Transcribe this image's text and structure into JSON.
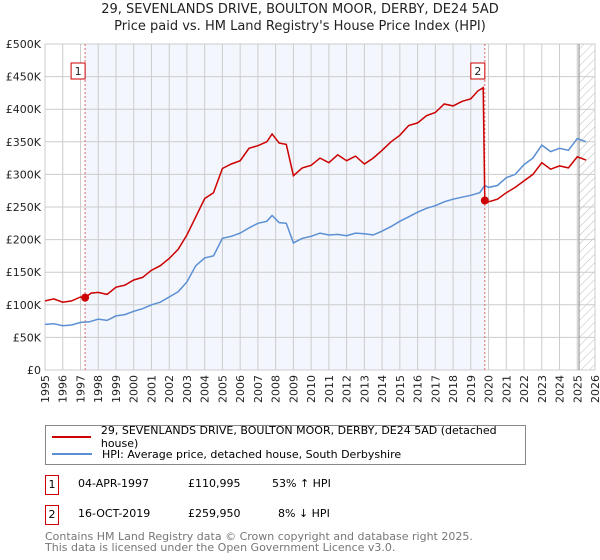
{
  "title_line1": "29, SEVENLANDS DRIVE, BOULTON MOOR, DERBY, DE24 5AD",
  "title_line2": "Price paid vs. HM Land Registry's House Price Index (HPI)",
  "chart_data": {
    "type": "line",
    "xlim": [
      1995,
      2026
    ],
    "ylim": [
      0,
      500000
    ],
    "yticks": [
      {
        "v": 0,
        "label": "£0"
      },
      {
        "v": 50000,
        "label": "£50K"
      },
      {
        "v": 100000,
        "label": "£100K"
      },
      {
        "v": 150000,
        "label": "£150K"
      },
      {
        "v": 200000,
        "label": "£200K"
      },
      {
        "v": 250000,
        "label": "£250K"
      },
      {
        "v": 300000,
        "label": "£300K"
      },
      {
        "v": 350000,
        "label": "£350K"
      },
      {
        "v": 400000,
        "label": "£400K"
      },
      {
        "v": 450000,
        "label": "£450K"
      },
      {
        "v": 500000,
        "label": "£500K"
      }
    ],
    "xticks": [
      1995,
      1996,
      1997,
      1998,
      1999,
      2000,
      2001,
      2002,
      2003,
      2004,
      2005,
      2006,
      2007,
      2008,
      2009,
      2010,
      2011,
      2012,
      2013,
      2014,
      2015,
      2016,
      2017,
      2018,
      2019,
      2020,
      2021,
      2022,
      2023,
      2024,
      2025,
      2026
    ],
    "grid": true,
    "shaded_range": [
      1997.26,
      2019.79
    ],
    "hatched_from": 2025.1,
    "series": [
      {
        "name": "29, SEVENLANDS DRIVE, BOULTON MOOR, DERBY, DE24 5AD (detached house)",
        "color": "#cc0000",
        "x": [
          1995,
          1995.5,
          1996,
          1996.5,
          1997,
          1997.26,
          1997.6,
          1998,
          1998.5,
          1999,
          1999.5,
          2000,
          2000.5,
          2001,
          2001.5,
          2002,
          2002.5,
          2003,
          2003.5,
          2004,
          2004.5,
          2005,
          2005.5,
          2006,
          2006.5,
          2007,
          2007.5,
          2007.8,
          2008.2,
          2008.6,
          2009,
          2009.5,
          2010,
          2010.5,
          2011,
          2011.5,
          2012,
          2012.5,
          2013,
          2013.5,
          2014,
          2014.5,
          2015,
          2015.5,
          2016,
          2016.5,
          2017,
          2017.5,
          2018,
          2018.5,
          2019,
          2019.4,
          2019.7,
          2019.79,
          2020,
          2020.5,
          2021,
          2021.5,
          2022,
          2022.5,
          2023,
          2023.5,
          2024,
          2024.5,
          2025,
          2025.5
        ],
        "y": [
          106000,
          109000,
          104000,
          106000,
          112000,
          110995,
          118000,
          119000,
          116000,
          127000,
          130000,
          138000,
          142000,
          153000,
          160000,
          171000,
          185000,
          207000,
          235000,
          263000,
          272000,
          309000,
          316000,
          321000,
          340000,
          344000,
          350000,
          362000,
          348000,
          346000,
          298000,
          310000,
          314000,
          325000,
          318000,
          330000,
          321000,
          328000,
          316000,
          325000,
          337000,
          350000,
          360000,
          375000,
          379000,
          390000,
          395000,
          408000,
          405000,
          412000,
          416000,
          428000,
          433000,
          259950,
          258000,
          262000,
          272000,
          280000,
          290000,
          300000,
          318000,
          308000,
          313000,
          310000,
          327000,
          322000
        ]
      },
      {
        "name": "HPI: Average price, detached house, South Derbyshire",
        "color": "#5b8fd4",
        "x": [
          1995,
          1995.5,
          1996,
          1996.5,
          1997,
          1997.5,
          1998,
          1998.5,
          1999,
          1999.5,
          2000,
          2000.5,
          2001,
          2001.5,
          2002,
          2002.5,
          2003,
          2003.5,
          2004,
          2004.5,
          2005,
          2005.5,
          2006,
          2006.5,
          2007,
          2007.5,
          2007.8,
          2008.2,
          2008.6,
          2009,
          2009.5,
          2010,
          2010.5,
          2011,
          2011.5,
          2012,
          2012.5,
          2013,
          2013.5,
          2014,
          2014.5,
          2015,
          2015.5,
          2016,
          2016.5,
          2017,
          2017.5,
          2018,
          2018.5,
          2019,
          2019.5,
          2019.79,
          2020,
          2020.5,
          2021,
          2021.5,
          2022,
          2022.5,
          2023,
          2023.5,
          2024,
          2024.5,
          2025,
          2025.5
        ],
        "y": [
          70000,
          71000,
          68000,
          69000,
          73000,
          74000,
          78000,
          76000,
          83000,
          85000,
          90000,
          94000,
          100000,
          104000,
          112000,
          120000,
          135000,
          160000,
          172000,
          175000,
          202000,
          205000,
          210000,
          218000,
          225000,
          228000,
          237000,
          226000,
          225000,
          195000,
          202000,
          205000,
          210000,
          207000,
          208000,
          206000,
          210000,
          209000,
          207000,
          213000,
          220000,
          228000,
          235000,
          242000,
          248000,
          252000,
          258000,
          262000,
          265000,
          268000,
          272000,
          283000,
          280000,
          283000,
          295000,
          300000,
          315000,
          325000,
          345000,
          335000,
          340000,
          337000,
          355000,
          350000
        ]
      }
    ],
    "markers": [
      {
        "id": "1",
        "x": 1997.26,
        "y": 110995
      },
      {
        "id": "2",
        "x": 2019.79,
        "y": 259950
      }
    ]
  },
  "legend": {
    "items": [
      "29, SEVENLANDS DRIVE, BOULTON MOOR, DERBY, DE24 5AD (detached house)",
      "HPI: Average price, detached house, South Derbyshire"
    ]
  },
  "transactions": [
    {
      "id": "1",
      "date": "04-APR-1997",
      "price": "£110,995",
      "hpi": "53% ↑ HPI"
    },
    {
      "id": "2",
      "date": "16-OCT-2019",
      "price": "£259,950",
      "hpi": "8% ↓ HPI"
    }
  ],
  "footer": {
    "line1": "Contains HM Land Registry data © Crown copyright and database right 2025.",
    "line2": "This data is licensed under the Open Government Licence v3.0."
  }
}
